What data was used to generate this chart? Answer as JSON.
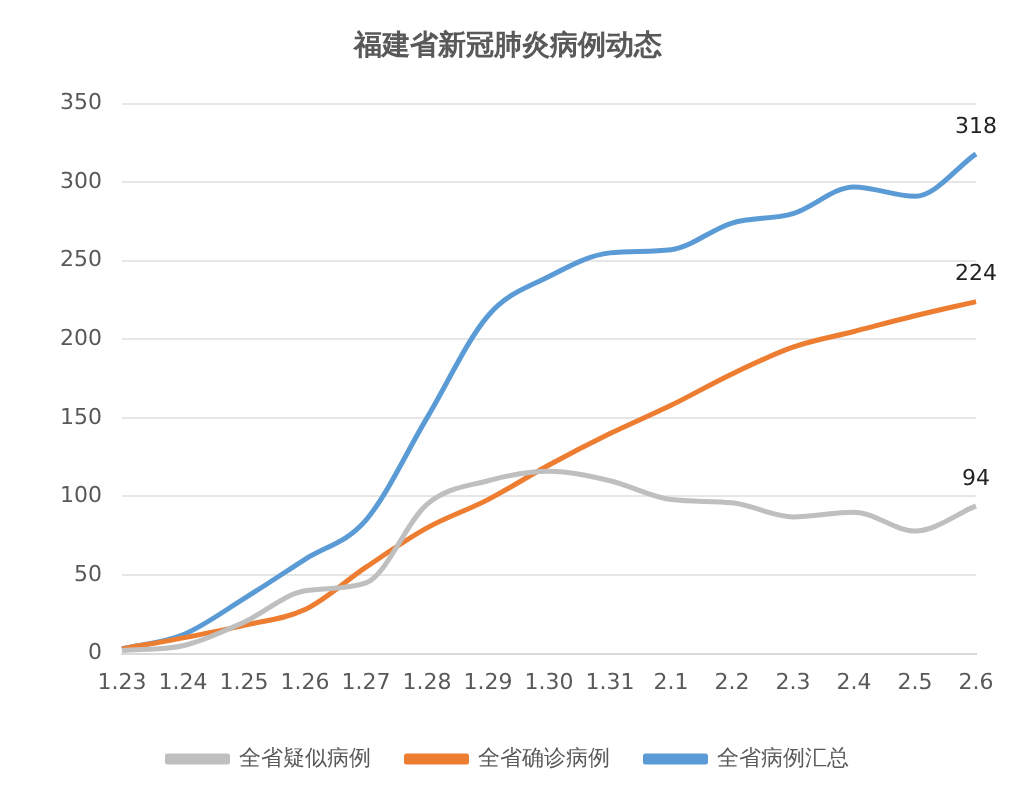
{
  "chart_data": {
    "type": "line",
    "title": "福建省新冠肺炎病例动态",
    "categories": [
      "1.23",
      "1.24",
      "1.25",
      "1.26",
      "1.27",
      "1.28",
      "1.29",
      "1.30",
      "1.31",
      "2.1",
      "2.2",
      "2.3",
      "2.4",
      "2.5",
      "2.6"
    ],
    "series": [
      {
        "name": "全省疑似病例",
        "color": "#bfbfbf",
        "values": [
          2,
          5,
          20,
          40,
          45,
          95,
          110,
          116,
          110,
          98,
          96,
          87,
          90,
          78,
          94
        ],
        "value_labels": [
          null,
          null,
          null,
          null,
          null,
          null,
          null,
          null,
          null,
          null,
          null,
          null,
          null,
          null,
          "94"
        ]
      },
      {
        "name": "全省确诊病例",
        "color": "#ed7d31",
        "values": [
          3,
          10,
          18,
          28,
          55,
          80,
          98,
          120,
          140,
          158,
          178,
          195,
          205,
          215,
          224
        ],
        "value_labels": [
          null,
          null,
          null,
          null,
          null,
          null,
          null,
          null,
          null,
          null,
          null,
          null,
          null,
          null,
          "224"
        ]
      },
      {
        "name": "全省病例汇总",
        "color": "#5b9bd5",
        "values": [
          3,
          12,
          35,
          60,
          85,
          150,
          215,
          240,
          255,
          257,
          274,
          280,
          297,
          291,
          318
        ],
        "value_labels": [
          null,
          null,
          null,
          null,
          null,
          null,
          null,
          null,
          null,
          null,
          null,
          null,
          null,
          null,
          "318"
        ]
      }
    ],
    "ylim": [
      0,
      350
    ],
    "yticks": [
      0,
      50,
      100,
      150,
      200,
      250,
      300,
      350
    ],
    "grid": "y",
    "legend": "bottom",
    "marker": "none",
    "line_style": "solid"
  }
}
